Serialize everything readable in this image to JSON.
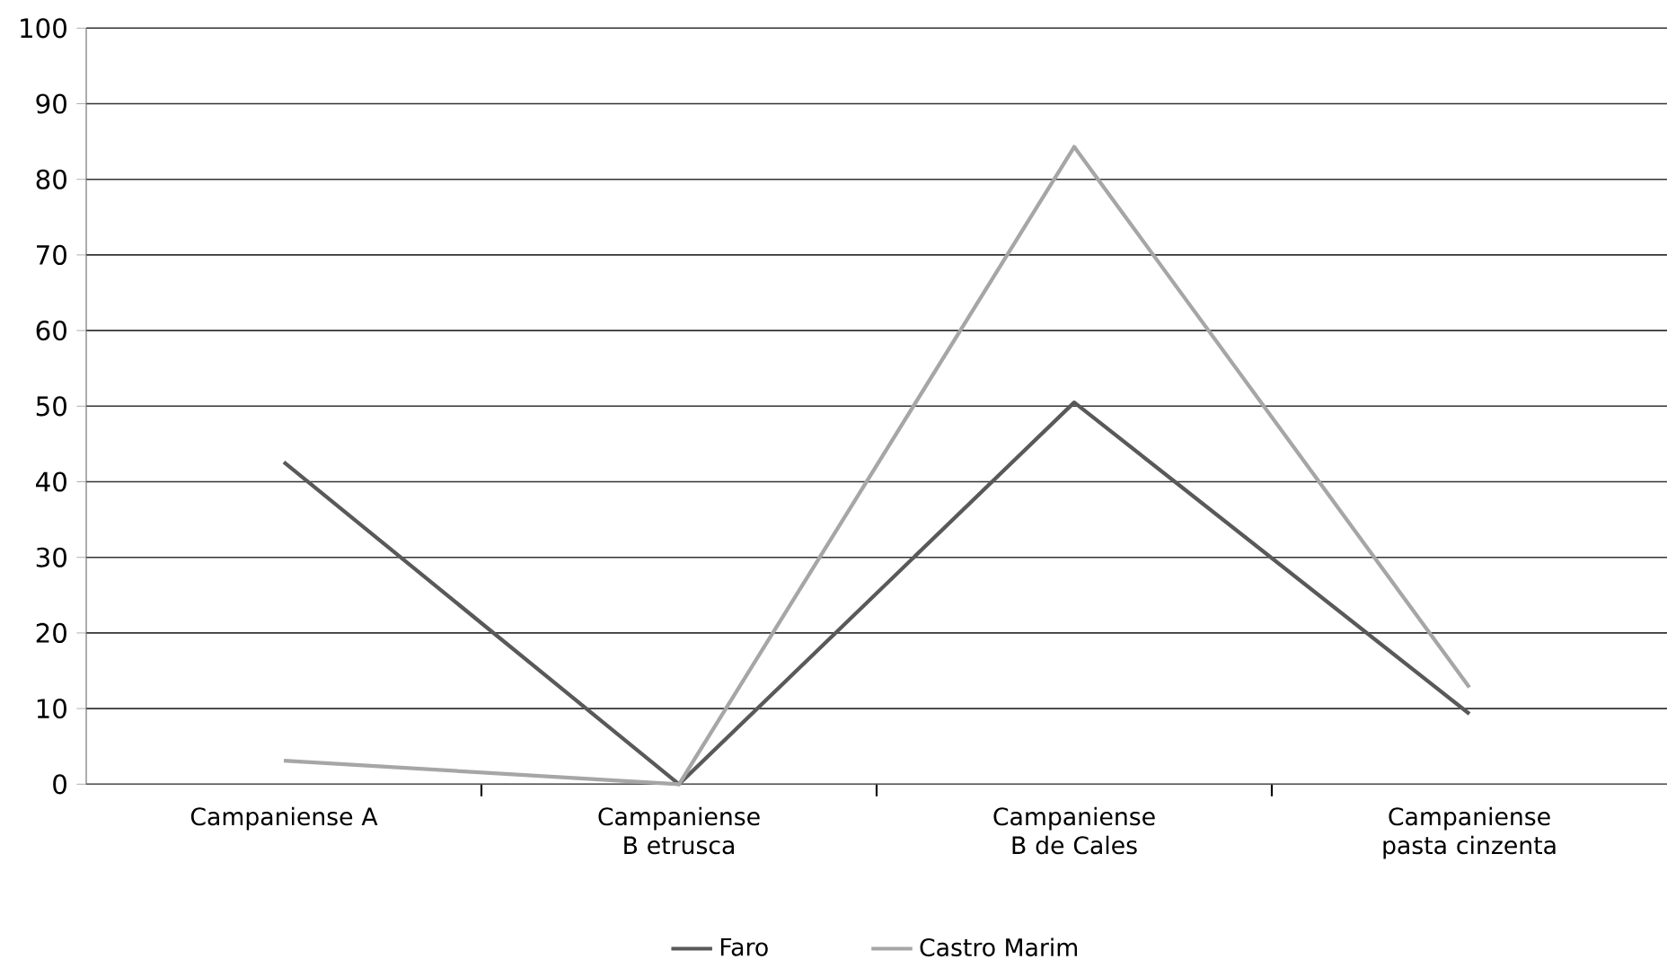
{
  "chart_data": {
    "type": "line",
    "categories": [
      "Campaniense A",
      "Campaniense B etrusca",
      "Campaniense B de Cales",
      "Campaniense pasta cinzenta"
    ],
    "series": [
      {
        "name": "Faro",
        "color": "#595959",
        "values": [
          42.6,
          0,
          50.5,
          9.3
        ]
      },
      {
        "name": "Castro Marim",
        "color": "#a6a6a6",
        "values": [
          3.1,
          0,
          84.3,
          12.8
        ]
      }
    ],
    "ylim": [
      0,
      100
    ],
    "yticks": [
      0,
      10,
      20,
      30,
      40,
      50,
      60,
      70,
      80,
      90,
      100
    ],
    "grid": "y",
    "legend": "bottom",
    "marker": "none",
    "line_style": "solid"
  }
}
